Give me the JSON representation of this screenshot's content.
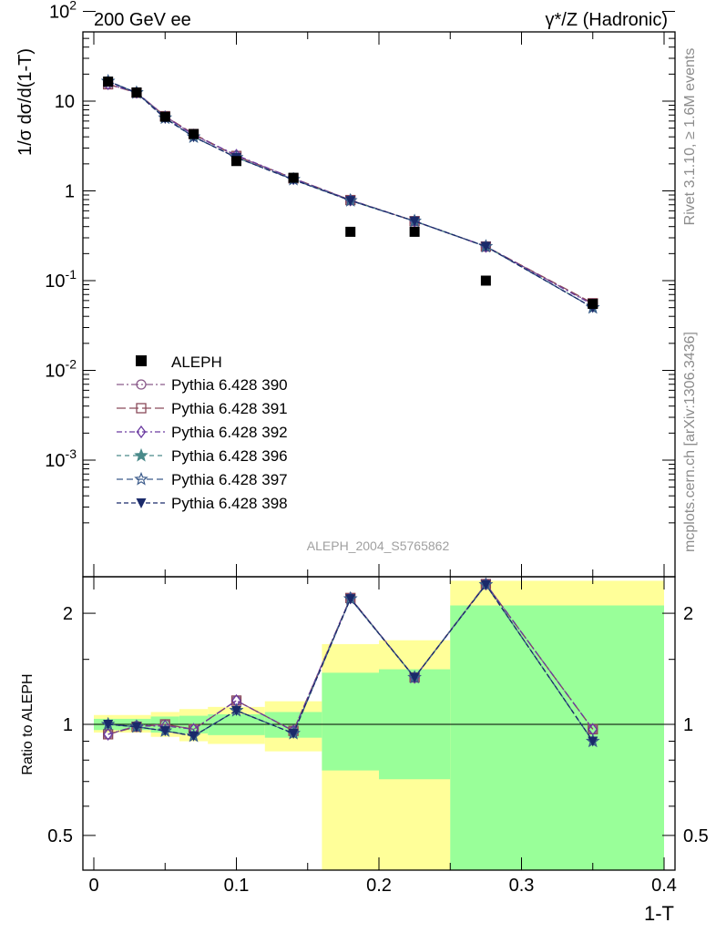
{
  "header": {
    "left": "200 GeV ee",
    "right": "γ*/Z (Hadronic)"
  },
  "side_labels": {
    "rivet": "Rivet 3.1.10, ≥ 1.6M events",
    "mcplots": "mcplots.cern.ch [arXiv:1306.3436]"
  },
  "watermark": "ALEPH_2004_S5765862",
  "chart_data": [
    {
      "type": "scatter",
      "panel": "main",
      "ylabel": "1/σ  dσ/d(1-T)",
      "yscale": "log",
      "ylim": [
        0.0006,
        700
      ],
      "xlim": [
        -0.01,
        0.4
      ],
      "y_ticks": [
        "10^-3",
        "10^-2",
        "10^-1",
        "1",
        "10",
        "10^2"
      ],
      "legend_position": "lower-left",
      "data": {
        "name": "ALEPH",
        "x": [
          0.01,
          0.03,
          0.05,
          0.07,
          0.1,
          0.14,
          0.18,
          0.225,
          0.275,
          0.35
        ],
        "y": [
          16.5,
          12.5,
          6.7,
          4.3,
          2.15,
          1.4,
          0.35,
          0.35,
          0.1,
          0.055
        ]
      },
      "series": [
        {
          "name": "Pythia 6.428 390",
          "color": "#8a5a8a",
          "dash": "8,3,2,3",
          "marker": "circle",
          "y": [
            15.5,
            12.5,
            6.8,
            4.2,
            2.45,
            1.38,
            0.79,
            0.46,
            0.24,
            0.055
          ]
        },
        {
          "name": "Pythia 6.428 391",
          "color": "#8a4a5a",
          "dash": "10,4",
          "marker": "square",
          "y": [
            15.4,
            12.4,
            6.8,
            4.3,
            2.45,
            1.38,
            0.79,
            0.46,
            0.24,
            0.056
          ]
        },
        {
          "name": "Pythia 6.428 392",
          "color": "#6a3aa0",
          "dash": "6,3,2,3",
          "marker": "diamond",
          "y": [
            15.6,
            12.5,
            6.7,
            4.2,
            2.5,
            1.37,
            0.79,
            0.46,
            0.24,
            0.054
          ]
        },
        {
          "name": "Pythia 6.428 396",
          "color": "#4a8a8a",
          "dash": "5,4",
          "marker": "star",
          "y": [
            16.6,
            12.4,
            6.5,
            4.0,
            2.35,
            1.34,
            0.78,
            0.46,
            0.24,
            0.05
          ]
        },
        {
          "name": "Pythia 6.428 397",
          "color": "#3a5a8a",
          "dash": "7,4",
          "marker": "star-open",
          "y": [
            16.7,
            12.4,
            6.5,
            4.0,
            2.35,
            1.34,
            0.78,
            0.46,
            0.24,
            0.05
          ]
        },
        {
          "name": "Pythia 6.428 398",
          "color": "#1a2a6a",
          "dash": "5,3",
          "marker": "triangle-down",
          "y": [
            16.7,
            12.4,
            6.4,
            4.0,
            2.35,
            1.33,
            0.78,
            0.46,
            0.24,
            0.05
          ]
        }
      ]
    },
    {
      "type": "line",
      "panel": "ratio",
      "ylabel": "Ratio to ALEPH",
      "xlabel": "1-T",
      "yscale": "log",
      "ylim": [
        0.34,
        2.45
      ],
      "xlim": [
        -0.01,
        0.4
      ],
      "y_ticks": [
        "0.5",
        "1",
        "2"
      ],
      "x_ticks": [
        "0",
        "0.1",
        "0.2",
        "0.3",
        "0.4"
      ],
      "bands": [
        {
          "x0": 0.0,
          "x1": 0.04,
          "stat_lo": 0.965,
          "stat_hi": 1.035,
          "tot_lo": 0.95,
          "tot_hi": 1.06
        },
        {
          "x0": 0.04,
          "x1": 0.06,
          "stat_lo": 0.95,
          "stat_hi": 1.05,
          "tot_lo": 0.925,
          "tot_hi": 1.08
        },
        {
          "x0": 0.06,
          "x1": 0.08,
          "stat_lo": 0.945,
          "stat_hi": 1.055,
          "tot_lo": 0.9,
          "tot_hi": 1.1
        },
        {
          "x0": 0.08,
          "x1": 0.12,
          "stat_lo": 0.935,
          "stat_hi": 1.065,
          "tot_lo": 0.885,
          "tot_hi": 1.115
        },
        {
          "x0": 0.12,
          "x1": 0.16,
          "stat_lo": 0.92,
          "stat_hi": 1.08,
          "tot_lo": 0.845,
          "tot_hi": 1.155
        },
        {
          "x0": 0.16,
          "x1": 0.2,
          "stat_lo": 0.75,
          "stat_hi": 1.38,
          "tot_lo": 0.365,
          "tot_hi": 1.65
        },
        {
          "x0": 0.2,
          "x1": 0.25,
          "stat_lo": 0.71,
          "stat_hi": 1.41,
          "tot_lo": 0.34,
          "tot_hi": 1.69
        },
        {
          "x0": 0.25,
          "x1": 0.4,
          "stat_lo": 0.34,
          "stat_hi": 2.1,
          "tot_lo": 0.34,
          "tot_hi": 2.45
        }
      ],
      "series": [
        {
          "name": "Pythia 6.428 390",
          "y": [
            0.94,
            0.99,
            1.0,
            0.97,
            1.16,
            0.96,
            2.2,
            1.34,
            2.4,
            0.97
          ]
        },
        {
          "name": "Pythia 6.428 391",
          "y": [
            0.94,
            0.985,
            1.0,
            0.97,
            1.16,
            0.96,
            2.2,
            1.34,
            2.4,
            0.97
          ]
        },
        {
          "name": "Pythia 6.428 392",
          "y": [
            0.94,
            0.99,
            0.99,
            0.97,
            1.16,
            0.96,
            2.2,
            1.34,
            2.4,
            0.97
          ]
        },
        {
          "name": "Pythia 6.428 396",
          "y": [
            1.0,
            0.985,
            0.96,
            0.93,
            1.09,
            0.945,
            2.19,
            1.34,
            2.39,
            0.9
          ]
        },
        {
          "name": "Pythia 6.428 397",
          "y": [
            1.0,
            0.985,
            0.96,
            0.93,
            1.09,
            0.945,
            2.19,
            1.34,
            2.39,
            0.9
          ]
        },
        {
          "name": "Pythia 6.428 398",
          "y": [
            1.0,
            0.985,
            0.96,
            0.93,
            1.09,
            0.945,
            2.19,
            1.34,
            2.39,
            0.9
          ]
        }
      ]
    }
  ]
}
